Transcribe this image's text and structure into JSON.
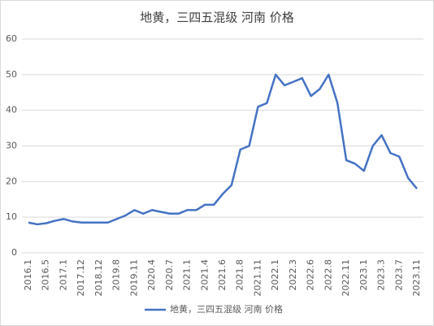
{
  "chart_data": {
    "type": "line",
    "title": "地黄，三四五混级 河南 价格",
    "categories": [
      "2016.1",
      null,
      "2016.5",
      null,
      "2017.1",
      null,
      "2017.12",
      null,
      "2018.12",
      null,
      "2019.8",
      null,
      "2019.11",
      null,
      "2020.4",
      null,
      "2020.7",
      null,
      "2021.1",
      null,
      "2021.4",
      null,
      "2021.6",
      null,
      "2021.8",
      null,
      "2021.11",
      null,
      "2022.1",
      null,
      "2022.3",
      null,
      "2022.6",
      null,
      "2022.8",
      null,
      "2022.11",
      null,
      "2023.1",
      null,
      "2023.3",
      null,
      "2023.7",
      null,
      "2023.11"
    ],
    "series": [
      {
        "name": "地黄，三四五混级 河南 价格",
        "color": "#4472c4",
        "values": [
          8.5,
          8,
          8.3,
          9,
          9.5,
          8.8,
          8.5,
          8.5,
          8.5,
          8.5,
          9.5,
          10.5,
          12,
          11,
          12,
          11.5,
          11,
          11,
          12,
          12,
          13.5,
          13.5,
          16.5,
          19,
          29,
          30,
          41,
          42,
          50,
          47,
          48,
          49,
          44,
          46,
          50,
          42,
          26,
          25,
          23,
          30,
          33,
          28,
          27,
          21,
          18
        ]
      }
    ],
    "ylim": [
      0,
      60
    ],
    "yticks": [
      0,
      10,
      20,
      30,
      40,
      50,
      60
    ],
    "grid": true,
    "legend": "bottom"
  }
}
